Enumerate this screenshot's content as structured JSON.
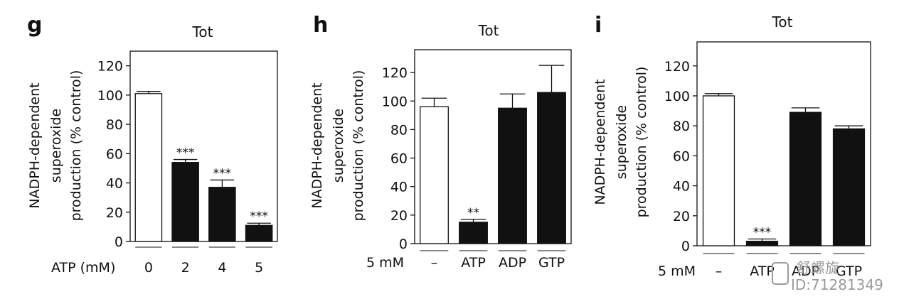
{
  "watermark": {
    "line1": "舒螺旋",
    "line2": "ID:71281349"
  },
  "panels": [
    {
      "letter": "g",
      "title": "Tot",
      "ylabel_lines": [
        "NADPH-dependent",
        "superoxide",
        "production (% control)"
      ],
      "xprefix": "ATP (mM)"
    },
    {
      "letter": "h",
      "title": "Tot",
      "ylabel_lines": [
        "NADPH-dependent",
        "superoxide",
        "production (% control)"
      ],
      "xprefix": "5 mM"
    },
    {
      "letter": "i",
      "title": "Tot",
      "ylabel_lines": [
        "NADPH-dependent",
        "superoxide",
        "production (% control)"
      ],
      "xprefix": "5 mM"
    }
  ],
  "chart_data": [
    {
      "type": "bar",
      "title": "Tot",
      "ylabel": "NADPH-dependent superoxide production (% control)",
      "xlabel": "ATP (mM)",
      "categories": [
        "0",
        "2",
        "4",
        "5"
      ],
      "values": [
        101,
        54,
        37,
        11
      ],
      "errors": [
        1.5,
        2,
        5,
        1.5
      ],
      "fills": [
        "#ffffff",
        "#111111",
        "#111111",
        "#111111"
      ],
      "significance": [
        "",
        "***",
        "***",
        "***"
      ],
      "ylim": [
        0,
        130
      ],
      "yticks": [
        0,
        20,
        40,
        60,
        80,
        100,
        120
      ]
    },
    {
      "type": "bar",
      "title": "Tot",
      "ylabel": "NADPH-dependent superoxide production (% control)",
      "xlabel": "5 mM",
      "categories": [
        "–",
        "ATP",
        "ADP",
        "GTP"
      ],
      "values": [
        96,
        15,
        95,
        106
      ],
      "errors": [
        6,
        2,
        10,
        19
      ],
      "fills": [
        "#ffffff",
        "#111111",
        "#111111",
        "#111111"
      ],
      "significance": [
        "",
        "**",
        "",
        ""
      ],
      "ylim": [
        0,
        136
      ],
      "yticks": [
        0,
        20,
        40,
        60,
        80,
        100,
        120
      ]
    },
    {
      "type": "bar",
      "title": "Tot",
      "ylabel": "NADPH-dependent superoxide production (% control)",
      "xlabel": "5 mM",
      "categories": [
        "–",
        "ATP",
        "ADP",
        "GTP"
      ],
      "values": [
        100,
        3,
        89,
        78
      ],
      "errors": [
        1.5,
        1.5,
        3,
        2
      ],
      "fills": [
        "#ffffff",
        "#111111",
        "#111111",
        "#111111"
      ],
      "significance": [
        "",
        "***",
        "",
        ""
      ],
      "ylim": [
        0,
        136
      ],
      "yticks": [
        0,
        20,
        40,
        60,
        80,
        100,
        120
      ]
    }
  ]
}
